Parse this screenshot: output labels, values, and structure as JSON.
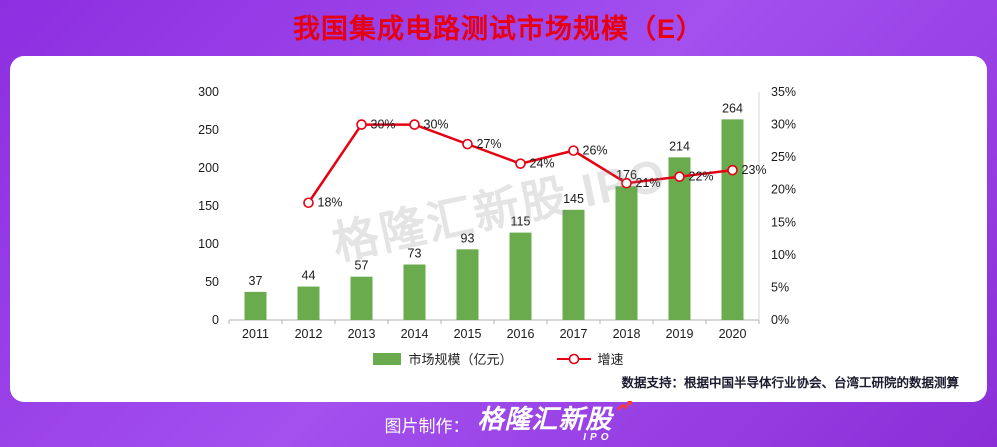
{
  "title": "我国集成电路测试市场规模（E）",
  "colors": {
    "background_start": "#8d2ee0",
    "background_mid": "#a350ef",
    "background_end": "#8b2ed8",
    "title_red": "#e60012",
    "bar_green": "#6aab4d",
    "line_red": "#e60012",
    "axis_gray": "#b0b0b0",
    "label_dark": "#1b1b1b"
  },
  "chart_data": {
    "type": "bar",
    "subtype": "bar+line combo, dual axis",
    "categories": [
      "2011",
      "2012",
      "2013",
      "2014",
      "2015",
      "2016",
      "2017",
      "2018",
      "2019",
      "2020"
    ],
    "series": [
      {
        "name": "市场规模（亿元）",
        "type": "bar",
        "axis": "left",
        "values": [
          37,
          44,
          57,
          73,
          93,
          115,
          145,
          176,
          214,
          264
        ]
      },
      {
        "name": "增速",
        "type": "line",
        "axis": "right",
        "unit": "%",
        "values": [
          null,
          18,
          30,
          30,
          27,
          24,
          26,
          21,
          22,
          23
        ]
      }
    ],
    "left_axis": {
      "min": 0,
      "max": 300,
      "step": 50,
      "ticks": [
        "0",
        "50",
        "100",
        "150",
        "200",
        "250",
        "300"
      ]
    },
    "right_axis": {
      "min": 0,
      "max": 35,
      "step": 5,
      "ticks": [
        "0%",
        "5%",
        "10%",
        "15%",
        "20%",
        "25%",
        "30%",
        "35%"
      ]
    },
    "grid": false,
    "legend_position": "bottom",
    "data_labels": true
  },
  "watermark": "格隆汇新股 IPO",
  "source_note": "数据支持：根据中国半导体行业协会、台湾工研院的数据测算",
  "footer": {
    "prefix": "图片制作：",
    "brand": "格隆汇新股",
    "brand_sub": "IPO"
  }
}
